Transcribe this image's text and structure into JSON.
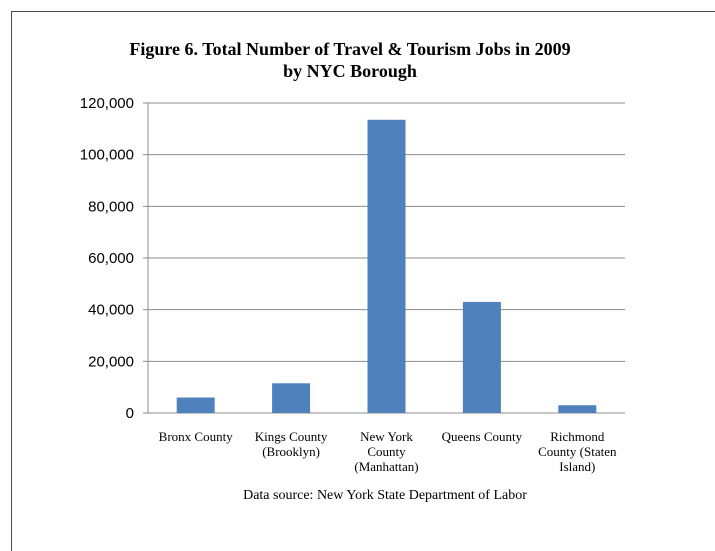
{
  "chart_data": {
    "type": "bar",
    "title": "Figure 6. Total Number of Travel & Tourism Jobs in 2009",
    "subtitle": "by NYC Borough",
    "source": "Data source: New York State Department of Labor",
    "categories": [
      [
        "Bronx County"
      ],
      [
        "Kings County",
        "(Brooklyn)"
      ],
      [
        "New York",
        "County",
        "(Manhattan)"
      ],
      [
        "Queens County"
      ],
      [
        "Richmond",
        "County (Staten",
        "Island)"
      ]
    ],
    "values": [
      6000,
      11500,
      113500,
      43000,
      3000
    ],
    "ylim": [
      0,
      120000
    ],
    "yticks": [
      0,
      20000,
      40000,
      60000,
      80000,
      100000,
      120000
    ],
    "ytick_labels": [
      "0",
      "20,000",
      "40,000",
      "60,000",
      "80,000",
      "100,000",
      "120,000"
    ],
    "grid": true,
    "bar_color": "#4f81bd",
    "grid_color": "#8c8c8c"
  }
}
